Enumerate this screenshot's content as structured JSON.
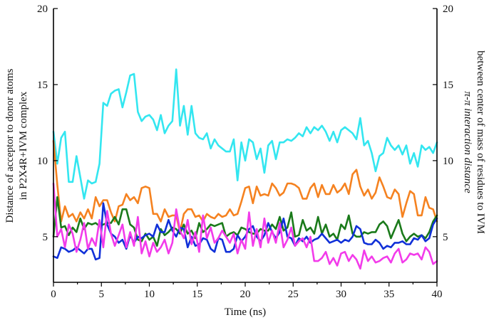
{
  "chart_data": {
    "type": "line",
    "title": "",
    "xlabel": "Time (ns)",
    "ylabel_left": [
      "Distance of acceptor to donor atoms",
      "in P2X4R+IVM complex"
    ],
    "ylabel_right": [
      "π-π interaction distance",
      "between center of mass of residues to IVM"
    ],
    "xlim": [
      0,
      40
    ],
    "ylim": [
      2,
      20
    ],
    "x_ticks": [
      0,
      5,
      10,
      15,
      20,
      25,
      30,
      35,
      40
    ],
    "y_ticks": [
      5,
      10,
      15,
      20
    ],
    "grid": false,
    "legend": "none",
    "series": [
      {
        "axis": "right",
        "color": "#33E6F0",
        "x": [
          0,
          0.4,
          0.8,
          1.2,
          1.6,
          2,
          2.4,
          2.8,
          3.2,
          3.6,
          4,
          4.4,
          4.8,
          5.2,
          5.6,
          6,
          6.4,
          6.8,
          7.2,
          7.6,
          8,
          8.4,
          8.8,
          9.2,
          9.6,
          10,
          10.4,
          10.8,
          11.2,
          11.6,
          12,
          12.4,
          12.8,
          13.2,
          13.6,
          14,
          14.4,
          14.8,
          15.2,
          15.6,
          16,
          16.4,
          16.8,
          17.2,
          17.6,
          18,
          18.4,
          18.8,
          19.2,
          19.6,
          20,
          20.4,
          20.8,
          21.2,
          21.6,
          22,
          22.4,
          22.8,
          23.2,
          23.6,
          24,
          24.4,
          24.8,
          25.2,
          25.6,
          26,
          26.4,
          26.8,
          27.2,
          27.6,
          28,
          28.4,
          28.8,
          29.2,
          29.6,
          30,
          30.4,
          30.8,
          31.2,
          31.6,
          32,
          32.4,
          32.8,
          33.2,
          33.6,
          34,
          34.4,
          34.8,
          35.2,
          35.6,
          36,
          36.4,
          36.8,
          37.2,
          37.6,
          38,
          38.4,
          38.8,
          39.2,
          39.6,
          40
        ],
        "values": [
          11.9,
          9.8,
          11.5,
          11.9,
          8.6,
          8.6,
          10.3,
          8.9,
          7.5,
          8.7,
          8.5,
          8.6,
          9.8,
          13.8,
          13.6,
          14.4,
          14.6,
          14.7,
          13.5,
          14.5,
          15.6,
          15.7,
          13.2,
          12.6,
          12.9,
          13.0,
          12.7,
          12.0,
          13.0,
          11.8,
          12.3,
          12.6,
          16.0,
          12.3,
          13.6,
          11.7,
          13.6,
          11.8,
          11.5,
          11.4,
          11.8,
          10.8,
          11.4,
          11.0,
          10.8,
          10.6,
          10.6,
          11.4,
          8.7,
          11.2,
          10.0,
          11.4,
          11.2,
          10.1,
          10.8,
          9.2,
          11.0,
          11.3,
          10.1,
          11.2,
          11.2,
          11.4,
          11.3,
          11.5,
          11.8,
          11.6,
          12.2,
          11.8,
          12.2,
          12.0,
          12.3,
          11.9,
          11.3,
          11.9,
          11.2,
          12.0,
          12.2,
          12.0,
          11.8,
          11.4,
          12.8,
          11.0,
          11.3,
          10.5,
          9.3,
          10.3,
          10.5,
          11.5,
          11.0,
          10.7,
          11.0,
          10.4,
          11.0,
          9.8,
          10.5,
          9.6,
          11.0,
          10.7,
          10.9,
          10.5,
          11.2
        ]
      },
      {
        "axis": "left",
        "color": "#F58220",
        "x": [
          0,
          0.4,
          0.8,
          1.2,
          1.6,
          2,
          2.4,
          2.8,
          3.2,
          3.6,
          4,
          4.4,
          4.8,
          5.2,
          5.6,
          6,
          6.4,
          6.8,
          7.2,
          7.6,
          8,
          8.4,
          8.8,
          9.2,
          9.6,
          10,
          10.4,
          10.8,
          11.2,
          11.6,
          12,
          12.4,
          12.8,
          13.2,
          13.6,
          14,
          14.4,
          14.8,
          15.2,
          15.6,
          16,
          16.4,
          16.8,
          17.2,
          17.6,
          18,
          18.4,
          18.8,
          19.2,
          19.6,
          20,
          20.4,
          20.8,
          21.2,
          21.6,
          22,
          22.4,
          22.8,
          23.2,
          23.6,
          24,
          24.4,
          24.8,
          25.2,
          25.6,
          26,
          26.4,
          26.8,
          27.2,
          27.6,
          28,
          28.4,
          28.8,
          29.2,
          29.6,
          30,
          30.4,
          30.8,
          31.2,
          31.6,
          32,
          32.4,
          32.8,
          33.2,
          33.6,
          34,
          34.4,
          34.8,
          35.2,
          35.6,
          36,
          36.4,
          36.8,
          37.2,
          37.6,
          38,
          38.4,
          38.8,
          39.2,
          39.6,
          40
        ],
        "values": [
          11.3,
          8.4,
          6.0,
          7.0,
          6.3,
          6.5,
          6.0,
          6.6,
          6.2,
          6.8,
          6.2,
          7.6,
          7.0,
          7.4,
          7.4,
          6.6,
          6.0,
          7.0,
          7.1,
          7.8,
          7.4,
          7.6,
          7.2,
          8.2,
          8.3,
          8.2,
          6.5,
          6.5,
          6.0,
          6.8,
          6.3,
          6.4,
          6.4,
          5.3,
          6.5,
          6.8,
          6.8,
          6.3,
          6.4,
          6.0,
          6.5,
          6.3,
          6.2,
          6.5,
          6.3,
          6.4,
          6.8,
          6.4,
          6.5,
          7.3,
          8.2,
          8.3,
          7.2,
          8.3,
          7.7,
          7.8,
          7.7,
          8.5,
          8.2,
          7.7,
          7.9,
          8.5,
          8.5,
          8.4,
          8.2,
          7.5,
          7.5,
          8.2,
          8.5,
          7.6,
          8.4,
          7.8,
          7.8,
          8.4,
          7.9,
          8.1,
          8.5,
          7.8,
          9.1,
          9.4,
          8.3,
          7.7,
          8.1,
          7.5,
          7.9,
          8.9,
          8.3,
          7.6,
          7.5,
          8.1,
          7.8,
          6.3,
          7.2,
          8.0,
          7.8,
          6.4,
          6.4,
          7.6,
          6.9,
          6.8,
          6.0
        ]
      },
      {
        "axis": "left",
        "color": "#1A7A1A",
        "x": [
          0,
          0.4,
          0.8,
          1.2,
          1.6,
          2,
          2.4,
          2.8,
          3.2,
          3.6,
          4,
          4.4,
          4.8,
          5.2,
          5.6,
          6,
          6.4,
          6.8,
          7.2,
          7.6,
          8,
          8.4,
          8.8,
          9.2,
          9.6,
          10,
          10.4,
          10.8,
          11.2,
          11.6,
          12,
          12.4,
          12.8,
          13.2,
          13.6,
          14,
          14.4,
          14.8,
          15.2,
          15.6,
          16,
          16.4,
          16.8,
          17.2,
          17.6,
          18,
          18.4,
          18.8,
          19.2,
          19.6,
          20,
          20.4,
          20.8,
          21.2,
          21.6,
          22,
          22.4,
          22.8,
          23.2,
          23.6,
          24,
          24.4,
          24.8,
          25.2,
          25.6,
          26,
          26.4,
          26.8,
          27.2,
          27.6,
          28,
          28.4,
          28.8,
          29.2,
          29.6,
          30,
          30.4,
          30.8,
          31.2,
          31.6,
          32,
          32.4,
          32.8,
          33.2,
          33.6,
          34,
          34.4,
          34.8,
          35.2,
          35.6,
          36,
          36.4,
          36.8,
          37.2,
          37.6,
          38,
          38.4,
          38.8,
          39.2,
          39.6,
          40
        ],
        "values": [
          5.0,
          7.6,
          5.6,
          5.7,
          5.1,
          5.6,
          5.3,
          6.2,
          5.5,
          5.9,
          5.8,
          5.9,
          5.7,
          5.8,
          5.9,
          5.9,
          6.3,
          5.8,
          6.8,
          6.8,
          5.8,
          5.6,
          4.8,
          4.7,
          5.2,
          4.8,
          5.0,
          4.4,
          5.5,
          5.1,
          5.3,
          5.6,
          5.5,
          5.2,
          5.8,
          5.2,
          5.4,
          4.9,
          5.9,
          5.3,
          5.5,
          5.8,
          5.7,
          5.8,
          5.9,
          5.0,
          5.2,
          5.3,
          5.1,
          5.6,
          5.5,
          5.3,
          5.2,
          5.2,
          5.5,
          5.4,
          5.4,
          5.8,
          5.5,
          6.3,
          5.4,
          5.6,
          6.6,
          5.0,
          5.1,
          6.1,
          5.4,
          5.6,
          5.2,
          6.3,
          5.2,
          5.8,
          5.0,
          5.2,
          4.8,
          5.8,
          5.5,
          6.4,
          5.2,
          5.0,
          5.0,
          5.3,
          5.2,
          5.3,
          5.3,
          5.8,
          6.0,
          5.7,
          4.9,
          5.5,
          6.1,
          5.2,
          4.7,
          5.0,
          5.2,
          5.0,
          5.1,
          4.9,
          5.3,
          6.0,
          6.4
        ]
      },
      {
        "axis": "left",
        "color": "#1030D8",
        "x": [
          0,
          0.4,
          0.8,
          1.2,
          1.6,
          2,
          2.4,
          2.8,
          3.2,
          3.6,
          4,
          4.4,
          4.8,
          5.2,
          5.6,
          6,
          6.4,
          6.8,
          7.2,
          7.6,
          8,
          8.4,
          8.8,
          9.2,
          9.6,
          10,
          10.4,
          10.8,
          11.2,
          11.6,
          12,
          12.4,
          12.8,
          13.2,
          13.6,
          14,
          14.4,
          14.8,
          15.2,
          15.6,
          16,
          16.4,
          16.8,
          17.2,
          17.6,
          18,
          18.4,
          18.8,
          19.2,
          19.6,
          20,
          20.4,
          20.8,
          21.2,
          21.6,
          22,
          22.4,
          22.8,
          23.2,
          23.6,
          24,
          24.4,
          24.8,
          25.2,
          25.6,
          26,
          26.4,
          26.8,
          27.2,
          27.6,
          28,
          28.4,
          28.8,
          29.2,
          29.6,
          30,
          30.4,
          30.8,
          31.2,
          31.6,
          32,
          32.4,
          32.8,
          33.2,
          33.6,
          34,
          34.4,
          34.8,
          35.2,
          35.6,
          36,
          36.4,
          36.8,
          37.2,
          37.6,
          38,
          38.4,
          38.8,
          39.2,
          39.6,
          40
        ],
        "values": [
          3.7,
          3.6,
          4.3,
          4.2,
          4.0,
          4.1,
          4.3,
          4.1,
          3.9,
          4.2,
          4.2,
          3.5,
          3.6,
          7.2,
          5.8,
          5.2,
          5.0,
          4.6,
          4.8,
          4.2,
          5.1,
          4.6,
          5.0,
          4.9,
          5.1,
          5.2,
          5.0,
          5.8,
          5.3,
          5.3,
          6.1,
          5.4,
          5.0,
          5.6,
          5.5,
          4.3,
          5.0,
          4.4,
          4.5,
          4.9,
          4.8,
          4.2,
          4.0,
          4.9,
          4.8,
          4.0,
          4.0,
          4.2,
          5.1,
          4.7,
          5.0,
          5.5,
          5.7,
          5.0,
          4.7,
          5.1,
          5.9,
          5.3,
          4.9,
          5.3,
          6.2,
          5.0,
          4.9,
          4.4,
          4.9,
          4.7,
          5.0,
          4.6,
          4.8,
          4.9,
          5.2,
          4.9,
          4.6,
          4.7,
          4.8,
          4.6,
          4.8,
          4.7,
          5.0,
          5.7,
          5.5,
          4.6,
          4.5,
          4.5,
          4.8,
          4.6,
          4.2,
          4.4,
          4.3,
          4.6,
          4.6,
          4.7,
          4.5,
          4.5,
          4.9,
          4.8,
          5.1,
          4.7,
          4.9,
          5.8,
          6.2
        ]
      },
      {
        "axis": "left",
        "color": "#F23BEA",
        "x": [
          0,
          0.4,
          0.8,
          1.2,
          1.6,
          2,
          2.4,
          2.8,
          3.2,
          3.6,
          4,
          4.4,
          4.8,
          5.2,
          5.6,
          6,
          6.4,
          6.8,
          7.2,
          7.6,
          8,
          8.4,
          8.8,
          9.2,
          9.6,
          10,
          10.4,
          10.8,
          11.2,
          11.6,
          12,
          12.4,
          12.8,
          13.2,
          13.6,
          14,
          14.4,
          14.8,
          15.2,
          15.6,
          16,
          16.4,
          16.8,
          17.2,
          17.6,
          18,
          18.4,
          18.8,
          19.2,
          19.6,
          20,
          20.4,
          20.8,
          21.2,
          21.6,
          22,
          22.4,
          22.8,
          23.2,
          23.6,
          24,
          24.4,
          24.8,
          25.2,
          25.6,
          26,
          26.4,
          26.8,
          27.2,
          27.6,
          28,
          28.4,
          28.8,
          29.2,
          29.6,
          30,
          30.4,
          30.8,
          31.2,
          31.6,
          32,
          32.4,
          32.8,
          33.2,
          33.6,
          34,
          34.4,
          34.8,
          35.2,
          35.6,
          36,
          36.4,
          36.8,
          37.2,
          37.6,
          38,
          38.4,
          38.8,
          39.2,
          39.6,
          40
        ],
        "values": [
          8.5,
          5.0,
          5.5,
          4.3,
          5.8,
          5.2,
          4.0,
          4.8,
          5.9,
          4.2,
          4.9,
          4.4,
          6.1,
          4.3,
          6.7,
          5.2,
          4.4,
          5.1,
          5.8,
          4.3,
          5.3,
          4.4,
          6.3,
          3.9,
          4.7,
          3.7,
          4.6,
          4.0,
          4.3,
          4.8,
          3.9,
          4.6,
          6.8,
          5.4,
          4.9,
          6.1,
          4.5,
          5.3,
          4.0,
          6.4,
          4.9,
          5.6,
          4.6,
          4.9,
          5.4,
          5.0,
          4.6,
          5.2,
          3.9,
          4.8,
          4.2,
          6.6,
          4.4,
          5.5,
          4.3,
          6.2,
          4.6,
          5.4,
          4.6,
          5.9,
          4.3,
          4.8,
          5.6,
          4.4,
          4.7,
          4.9,
          4.3,
          5.0,
          3.4,
          3.4,
          3.6,
          4.0,
          3.2,
          3.6,
          3.1,
          3.9,
          4.0,
          3.4,
          3.8,
          3.5,
          2.9,
          4.1,
          3.4,
          3.7,
          3.3,
          3.4,
          3.6,
          3.7,
          3.3,
          3.9,
          4.2,
          3.3,
          3.5,
          3.9,
          3.8,
          3.9,
          3.5,
          4.3,
          4.0,
          3.2,
          3.4
        ]
      }
    ]
  }
}
